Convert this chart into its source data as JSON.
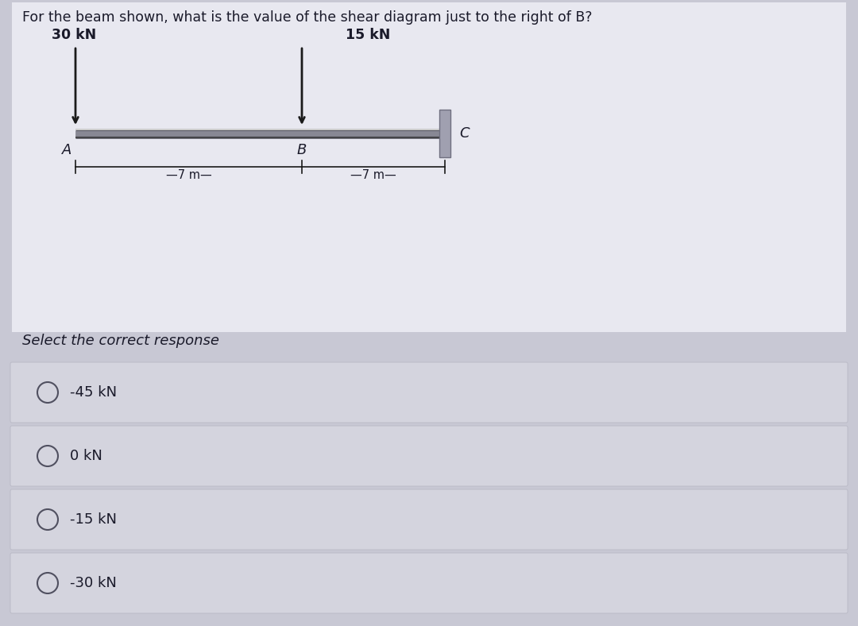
{
  "title": "For the beam shown, what is the value of the shear diagram just to the right of B?",
  "title_fontsize": 12.5,
  "question_text": "Select the correct response",
  "question_fontsize": 13,
  "choices": [
    "-45 kN",
    "0 kN",
    "-15 kN",
    "-30 kN"
  ],
  "choice_fontsize": 13,
  "load1_label": "30 kN",
  "load2_label": "15 kN",
  "point_A": "A",
  "point_B": "B",
  "point_C": "C",
  "dim1": "–7 m—",
  "dim2": "–7 m—",
  "bg_color": "#c8c8d4",
  "diagram_bg": "#e8e8f0",
  "beam_color": "#1a1a1a",
  "support_color": "#888899",
  "text_color": "#1a1a2a",
  "option_bg": "#d4d4de",
  "option_border": "#b8b8c4"
}
